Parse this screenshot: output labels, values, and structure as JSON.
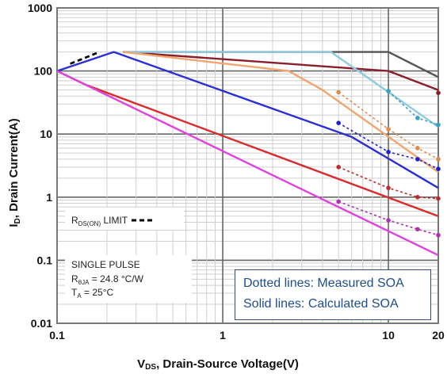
{
  "chart_data": {
    "type": "line",
    "title": "",
    "xlabel": "Vₑₛ, Drain-Source Voltage(V)",
    "xlabel_parts": {
      "prefix": "V",
      "sub": "DS",
      "rest": ", Drain-Source Voltage(V)"
    },
    "ylabel_parts": {
      "prefix": "I",
      "sub": "D",
      "rest": ", Drain Current(A)"
    },
    "x_scale": "log",
    "y_scale": "log",
    "xlim": [
      0.1,
      20
    ],
    "ylim": [
      0.01,
      1000
    ],
    "x_ticks": [
      {
        "value": 0.1,
        "label": "0.1"
      },
      {
        "value": 1,
        "label": "1"
      },
      {
        "value": 10,
        "label": "10"
      },
      {
        "value": 20,
        "label": "20"
      }
    ],
    "y_ticks": [
      {
        "value": 1000,
        "label": "1000"
      },
      {
        "value": 100,
        "label": "100"
      },
      {
        "value": 10,
        "label": "10"
      },
      {
        "value": 1,
        "label": "1"
      },
      {
        "value": 0.1,
        "label": "0.1"
      },
      {
        "value": 0.01,
        "label": "0.01"
      }
    ],
    "grid": true,
    "calculated_series": [
      {
        "color": "#555555",
        "points": [
          [
            0.25,
            200
          ],
          [
            10,
            200
          ],
          [
            20,
            80
          ]
        ]
      },
      {
        "color": "#8a1f2b",
        "points": [
          [
            0.25,
            200
          ],
          [
            10,
            100
          ],
          [
            20,
            50
          ]
        ]
      },
      {
        "color": "#8fcbe0",
        "points": [
          [
            0.25,
            200
          ],
          [
            4.5,
            200
          ],
          [
            20,
            13
          ]
        ]
      },
      {
        "color": "#f0a66e",
        "points": [
          [
            0.25,
            200
          ],
          [
            2.5,
            100
          ],
          [
            4,
            50
          ],
          [
            20,
            2.5
          ]
        ]
      },
      {
        "color": "#2a2fd4",
        "points": [
          [
            0.1,
            100
          ],
          [
            0.22,
            200
          ],
          [
            6,
            9
          ],
          [
            20,
            1.4
          ]
        ]
      },
      {
        "color": "#d92b2b",
        "points": [
          [
            0.1,
            100
          ],
          [
            0.15,
            60
          ],
          [
            20,
            0.5
          ]
        ]
      },
      {
        "color": "#e040e0",
        "points": [
          [
            0.1,
            100
          ],
          [
            20,
            0.12
          ]
        ]
      }
    ],
    "measured_series": [
      {
        "color": "#8a1f2b",
        "points": [
          [
            20,
            45
          ]
        ]
      },
      {
        "color": "#3aa0c0",
        "points": [
          [
            10,
            48
          ],
          [
            15,
            18
          ],
          [
            20,
            14
          ]
        ]
      },
      {
        "color": "#e08a4a",
        "points": [
          [
            5,
            46
          ],
          [
            10,
            12
          ],
          [
            15,
            6
          ],
          [
            20,
            4
          ]
        ]
      },
      {
        "color": "#2020d0",
        "points": [
          [
            5,
            15
          ],
          [
            10,
            5.2
          ],
          [
            15,
            4
          ],
          [
            20,
            2.8
          ]
        ]
      },
      {
        "color": "#c02a2a",
        "points": [
          [
            5,
            3
          ],
          [
            10,
            1.4
          ],
          [
            15,
            1
          ],
          [
            20,
            0.95
          ]
        ]
      },
      {
        "color": "#b030b0",
        "points": [
          [
            5,
            0.85
          ],
          [
            10,
            0.43
          ],
          [
            15,
            0.31
          ],
          [
            20,
            0.25
          ]
        ]
      }
    ],
    "rds_on_limit": {
      "points": [
        [
          0.12,
          130
        ],
        [
          0.18,
          200
        ]
      ]
    },
    "annotations": {
      "rds_label": {
        "prefix": "R",
        "sub": "DS(ON)",
        "rest": " LIMIT"
      },
      "pulse": "SINGLE PULSE",
      "rtheta": {
        "prefix": "R",
        "sub": "θJA",
        "rest": " = 24.8 °C/W"
      },
      "ta": {
        "prefix": "T",
        "sub": "A",
        "rest": " = 25°C"
      }
    },
    "legend": {
      "position": "bottom-right",
      "dotted": "Dotted lines: Measured SOA",
      "solid": "Solid lines: Calculated SOA"
    }
  }
}
